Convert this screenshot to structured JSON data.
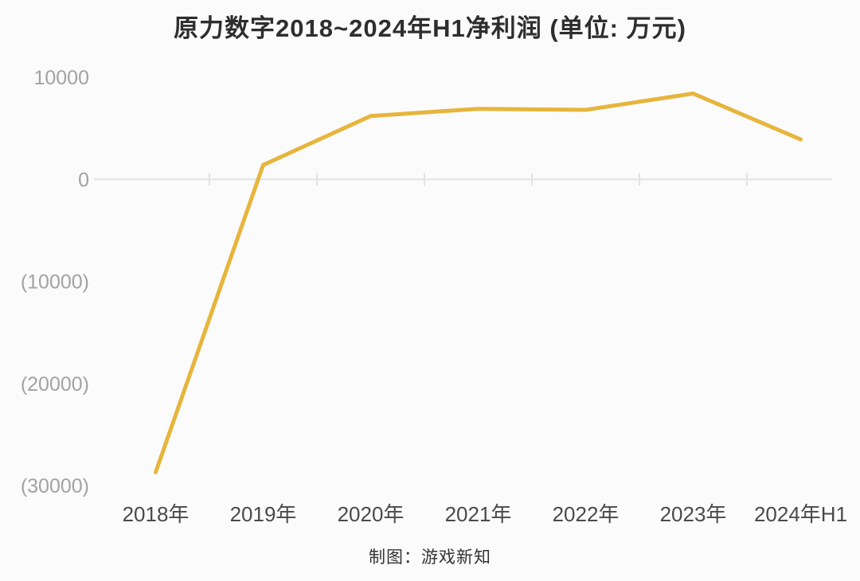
{
  "chart_data": {
    "type": "line",
    "title": "原力数字2018~2024年H1净利润 (单位: 万元)",
    "series_name": "净利润",
    "unit": "万元",
    "categories": [
      "2018年",
      "2019年",
      "2020年",
      "2021年",
      "2022年",
      "2023年",
      "2024年H1"
    ],
    "values": [
      -28700,
      1400,
      6200,
      6900,
      6800,
      8400,
      3900
    ],
    "ylim": [
      -30000,
      10000
    ],
    "y_ticks": [
      10000,
      0,
      -10000,
      -20000,
      -30000
    ],
    "y_tick_labels": [
      "10000",
      "0",
      "(10000)",
      "(20000)",
      "(30000)"
    ],
    "legend": "none",
    "grid": "zero-line-only",
    "colors": {
      "line": "#E7B53C",
      "grid_line": "#e3e3e3",
      "y_tick_text": "#a2a2a2",
      "x_tick_text": "#4a4a4a",
      "background": "#fbfbfb"
    }
  },
  "footer": {
    "credit": "制图：游戏新知"
  }
}
